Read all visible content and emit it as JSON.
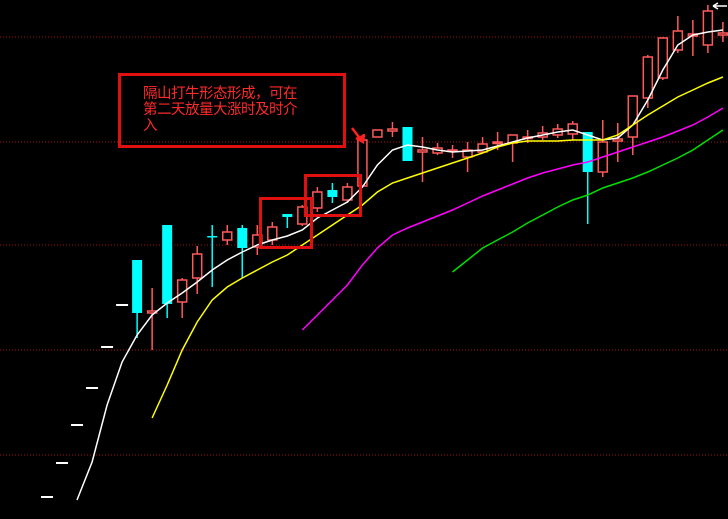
{
  "chart_data": {
    "type": "candlestick",
    "title": "",
    "xlabel": "",
    "ylabel": "",
    "grid": "dotted horizontal red lines",
    "colors": {
      "background": "#000000",
      "up": "#ff5a5a",
      "down": "#00ffff",
      "grid": "#a01010",
      "annotation": "#ff2020"
    },
    "gridlines": [
      24.15,
      18.9,
      13.75,
      8.5,
      3.25
    ],
    "candles": [
      [
        1.15,
        1.15,
        1.15,
        1.15
      ],
      [
        2.85,
        2.85,
        2.85,
        2.85
      ],
      [
        4.75,
        4.75,
        4.75,
        4.75
      ],
      [
        6.6,
        6.6,
        6.6,
        6.6
      ],
      [
        8.65,
        8.65,
        8.65,
        8.65
      ],
      [
        10.75,
        10.75,
        10.75,
        10.75
      ],
      [
        13.0,
        13.0,
        9.1,
        10.35
      ],
      [
        10.35,
        11.6,
        8.5,
        10.45
      ],
      [
        14.75,
        14.75,
        10.1,
        10.8
      ],
      [
        10.9,
        12.1,
        10.1,
        12.0
      ],
      [
        12.1,
        13.7,
        11.3,
        13.3
      ],
      [
        14.2,
        14.75,
        11.65,
        14.15
      ],
      [
        14.0,
        14.75,
        13.75,
        14.4
      ],
      [
        14.6,
        14.75,
        12.1,
        13.6
      ],
      [
        13.65,
        14.75,
        13.25,
        14.25
      ],
      [
        14.0,
        14.9,
        13.75,
        14.65
      ],
      [
        15.3,
        15.3,
        14.6,
        15.15
      ],
      [
        14.8,
        15.75,
        14.7,
        15.65
      ],
      [
        15.6,
        16.65,
        15.4,
        16.4
      ],
      [
        16.5,
        16.85,
        15.85,
        16.15
      ],
      [
        16.0,
        16.85,
        15.85,
        16.65
      ],
      [
        16.7,
        19.0,
        16.7,
        19.0
      ],
      [
        19.15,
        19.5,
        19.15,
        19.5
      ],
      [
        19.45,
        19.9,
        19.15,
        19.55
      ],
      [
        19.65,
        19.65,
        17.95,
        17.95
      ],
      [
        18.4,
        19.15,
        16.9,
        18.5
      ],
      [
        18.35,
        18.85,
        18.25,
        18.6
      ],
      [
        18.45,
        18.75,
        18.1,
        18.5
      ],
      [
        18.15,
        18.9,
        17.4,
        18.5
      ],
      [
        18.4,
        19.15,
        18.35,
        18.8
      ],
      [
        18.85,
        19.4,
        18.5,
        18.9
      ],
      [
        18.85,
        19.25,
        17.9,
        19.25
      ],
      [
        19.1,
        19.5,
        18.85,
        19.15
      ],
      [
        19.15,
        19.7,
        19.0,
        19.35
      ],
      [
        19.25,
        19.8,
        19.1,
        19.55
      ],
      [
        19.3,
        19.95,
        19.0,
        19.8
      ],
      [
        19.4,
        19.4,
        14.8,
        17.4
      ],
      [
        17.4,
        20.0,
        17.15,
        18.9
      ],
      [
        18.95,
        19.85,
        17.9,
        19.05
      ],
      [
        19.15,
        21.2,
        18.25,
        21.2
      ],
      [
        21.1,
        23.25,
        20.6,
        23.15
      ],
      [
        22.1,
        24.15,
        22.0,
        24.1
      ],
      [
        23.5,
        25.2,
        23.35,
        24.45
      ],
      [
        24.2,
        25.0,
        23.2,
        24.3
      ],
      [
        23.75,
        25.75,
        23.35,
        25.45
      ],
      [
        24.25,
        24.9,
        23.9,
        24.35
      ]
    ],
    "candle_fields": [
      "open",
      "high",
      "low",
      "close"
    ],
    "moving_averages": [
      {
        "color": "#ffffff",
        "start": 2,
        "values": [
          1.0,
          2.9,
          5.75,
          7.9,
          9.25,
          10.25,
          10.85,
          11.35,
          11.9,
          12.5,
          13.0,
          13.4,
          13.75,
          14.0,
          14.2,
          14.5,
          15.1,
          15.5,
          15.9,
          16.65,
          17.75,
          18.5,
          18.75,
          18.65,
          18.5,
          18.4,
          18.45,
          18.5,
          18.7,
          18.9,
          19.1,
          19.25,
          19.4,
          19.5,
          19.25,
          19.0,
          19.1,
          19.75,
          21.0,
          22.5,
          23.75,
          24.25,
          24.4,
          24.5
        ]
      },
      {
        "color": "#ffff00",
        "start": 7,
        "values": [
          5.1,
          6.75,
          8.5,
          9.9,
          11.0,
          11.65,
          12.1,
          12.5,
          12.9,
          13.25,
          13.75,
          14.25,
          14.75,
          15.25,
          15.75,
          16.4,
          16.85,
          17.1,
          17.35,
          17.6,
          17.85,
          18.1,
          18.35,
          18.65,
          18.85,
          18.95,
          18.95,
          18.95,
          19.0,
          19.0,
          19.0,
          19.25,
          19.75,
          20.25,
          20.7,
          21.15,
          21.5,
          21.85,
          22.15
        ]
      },
      {
        "color": "#ff00ff",
        "start": 17,
        "values": [
          9.5,
          10.25,
          11.0,
          11.75,
          12.75,
          13.6,
          14.25,
          14.6,
          14.9,
          15.2,
          15.5,
          15.85,
          16.2,
          16.5,
          16.8,
          17.1,
          17.35,
          17.55,
          17.75,
          17.9,
          18.15,
          18.4,
          18.65,
          18.9,
          19.15,
          19.45,
          19.75,
          20.15,
          20.6
        ]
      },
      {
        "color": "#00e000",
        "start": 27,
        "values": [
          12.4,
          13.0,
          13.6,
          14.0,
          14.4,
          14.85,
          15.25,
          15.65,
          16.0,
          16.25,
          16.6,
          16.85,
          17.1,
          17.4,
          17.75,
          18.1,
          18.5,
          19.0,
          19.5
        ]
      }
    ],
    "annotation": {
      "line1": "隔山打牛形态形成，可在",
      "line2": "第二天放量大涨时及时介",
      "line3": "入"
    }
  }
}
